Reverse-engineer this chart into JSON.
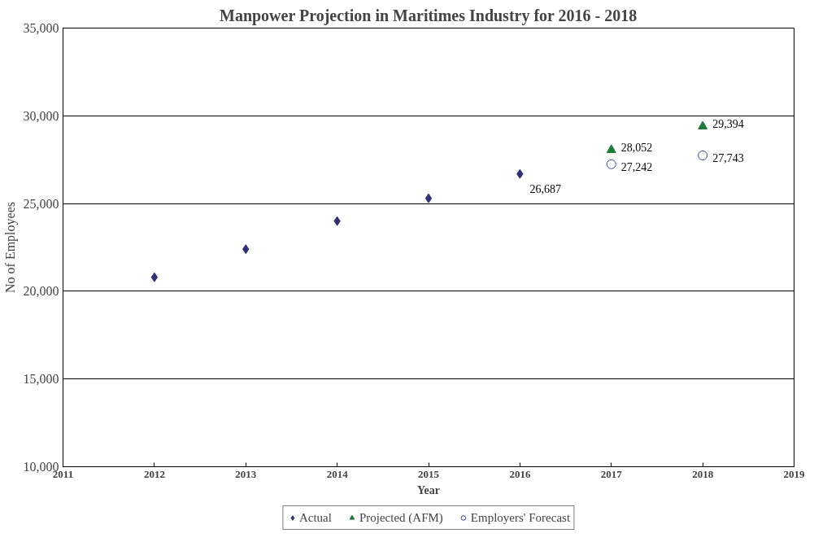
{
  "chart_data": {
    "type": "scatter",
    "title": "Manpower Projection in Maritimes Industry for 2016 - 2018",
    "xlabel": "Year",
    "ylabel": "No of Employees",
    "xlim": [
      2011,
      2019
    ],
    "xticks": [
      2011,
      2012,
      2013,
      2014,
      2015,
      2016,
      2017,
      2018,
      2019
    ],
    "ylim": [
      10000,
      35000
    ],
    "yticks": [
      {
        "value": 10000,
        "label": "10,000"
      },
      {
        "value": 15000,
        "label": "15,000"
      },
      {
        "value": 20000,
        "label": "20,000"
      },
      {
        "value": 25000,
        "label": "25,000"
      },
      {
        "value": 30000,
        "label": "30,000"
      },
      {
        "value": 35000,
        "label": "35,000"
      }
    ],
    "grid": "y",
    "legend": "bottom",
    "series": [
      {
        "name": "Actual",
        "color": "#2e3177",
        "marker": "diamond",
        "x": [
          2012,
          2013,
          2014,
          2015,
          2016
        ],
        "values": [
          20800,
          22400,
          24000,
          25300,
          26687
        ],
        "value_labels": [
          null,
          null,
          null,
          null,
          "26,687"
        ]
      },
      {
        "name": "Projected (AFM)",
        "color": "#1a7a3a",
        "marker": "triangle",
        "x": [
          2017,
          2018
        ],
        "values": [
          28052,
          29394
        ],
        "value_labels": [
          "28,052",
          "29,394"
        ]
      },
      {
        "name": "Employers' Forecast",
        "color": "#2e4a9e",
        "marker": "circle",
        "x": [
          2017,
          2018
        ],
        "values": [
          27242,
          27743
        ],
        "value_labels": [
          "27,242",
          "27,743"
        ]
      }
    ]
  }
}
